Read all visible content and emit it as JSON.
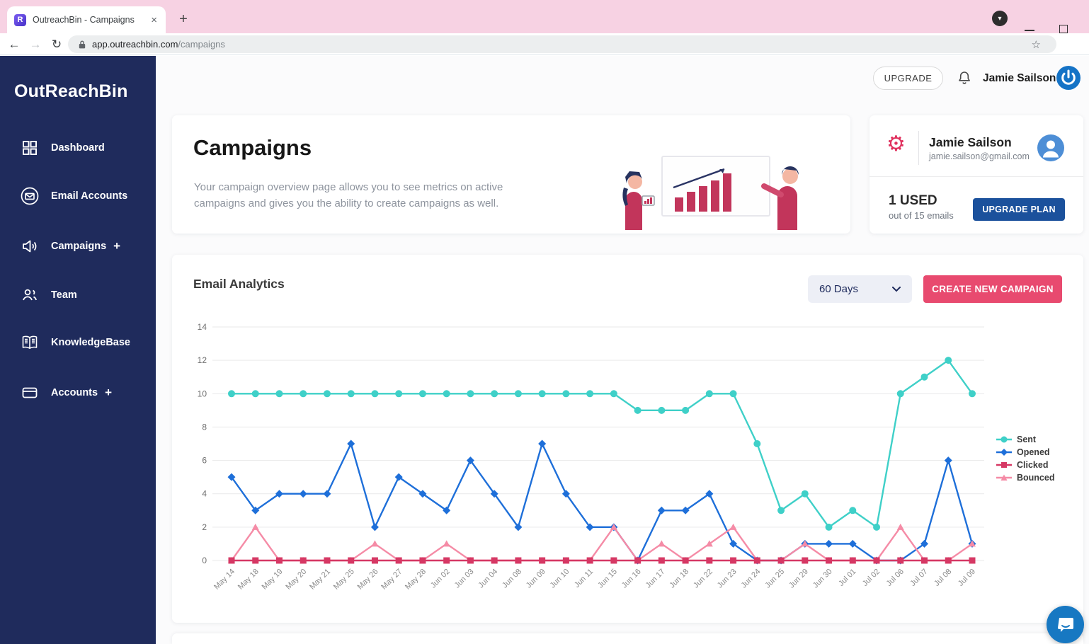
{
  "browser": {
    "tab_title": "OutreachBin - Campaigns",
    "url_domain": "app.outreachbin.com",
    "url_path": "/campaigns"
  },
  "icons": {
    "favicon_letter": "R",
    "close_glyph": "×",
    "plus_glyph": "+",
    "chevron_down_glyph": "▾",
    "back_glyph": "←",
    "forward_glyph": "→",
    "reload_glyph": "↻",
    "star_glyph": "☆",
    "gear_glyph": "⚙"
  },
  "sidebar": {
    "logo": "OutReachBin",
    "items": [
      {
        "label": "Dashboard",
        "icon": "grid-icon"
      },
      {
        "label": "Email Accounts",
        "icon": "envelope-icon"
      },
      {
        "label": "Campaigns",
        "icon": "megaphone-icon",
        "plus": "+"
      },
      {
        "label": "Team",
        "icon": "team-icon"
      },
      {
        "label": "KnowledgeBase",
        "icon": "book-icon"
      },
      {
        "label": "Accounts",
        "icon": "wallet-icon",
        "plus": "+"
      }
    ]
  },
  "topbar": {
    "upgrade_label": "UPGRADE",
    "user_name": "Jamie Sailson"
  },
  "header_card": {
    "title": "Campaigns",
    "description_line1": "Your campaign overview page allows you to see metrics on active",
    "description_line2": "campaigns and gives you the ability to create campaigns as well."
  },
  "profile_card": {
    "name": "Jamie Sailson",
    "email": "jamie.sailson@gmail.com",
    "used_count": "1 USED",
    "used_detail": "out of 15 emails",
    "upgrade_button": "UPGRADE PLAN"
  },
  "analytics": {
    "title": "Email Analytics",
    "range_selector": "60 Days",
    "create_button": "CREATE NEW CAMPAIGN"
  },
  "colors": {
    "sidebar_navy": "#1f2b5c",
    "tabstrip_pink": "#f7d2e3",
    "accent_pink": "#e84a6f",
    "plan_button_blue": "#1b519c",
    "sent_teal": "#3fd0c8",
    "opened_blue": "#1e6fd9",
    "clicked_crimson": "#d63864",
    "bounced_pink": "#f58ba6"
  },
  "chart_data": {
    "type": "line",
    "title": "Email Analytics",
    "xlabel": "",
    "ylabel": "",
    "ylim": [
      0,
      14
    ],
    "yticks": [
      0,
      2,
      4,
      6,
      8,
      10,
      12,
      14
    ],
    "grid": true,
    "legend_position": "right",
    "categories": [
      "May 14",
      "May 18",
      "May 19",
      "May 20",
      "May 21",
      "May 25",
      "May 26",
      "May 27",
      "May 28",
      "Jun 02",
      "Jun 03",
      "Jun 04",
      "Jun 08",
      "Jun 09",
      "Jun 10",
      "Jun 11",
      "Jun 15",
      "Jun 16",
      "Jun 17",
      "Jun 18",
      "Jun 22",
      "Jun 23",
      "Jun 24",
      "Jun 25",
      "Jun 29",
      "Jun 30",
      "Jul 01",
      "Jul 02",
      "Jul 06",
      "Jul 07",
      "Jul 08",
      "Jul 09"
    ],
    "series": [
      {
        "name": "Sent",
        "color": "#3fd0c8",
        "marker": "circle",
        "values": [
          10,
          10,
          10,
          10,
          10,
          10,
          10,
          10,
          10,
          10,
          10,
          10,
          10,
          10,
          10,
          10,
          10,
          9,
          9,
          9,
          10,
          10,
          7,
          3,
          4,
          2,
          3,
          2,
          10,
          11,
          12,
          10
        ]
      },
      {
        "name": "Opened",
        "color": "#1e6fd9",
        "marker": "diamond",
        "values": [
          5,
          3,
          4,
          4,
          4,
          7,
          2,
          5,
          4,
          3,
          6,
          4,
          2,
          7,
          4,
          2,
          2,
          0,
          3,
          3,
          4,
          1,
          0,
          0,
          1,
          1,
          1,
          0,
          0,
          1,
          6,
          1
        ]
      },
      {
        "name": "Clicked",
        "color": "#d63864",
        "marker": "square",
        "values": [
          0,
          0,
          0,
          0,
          0,
          0,
          0,
          0,
          0,
          0,
          0,
          0,
          0,
          0,
          0,
          0,
          0,
          0,
          0,
          0,
          0,
          0,
          0,
          0,
          0,
          0,
          0,
          0,
          0,
          0,
          0,
          0
        ]
      },
      {
        "name": "Bounced",
        "color": "#f58ba6",
        "marker": "triangle",
        "values": [
          0,
          2,
          0,
          0,
          0,
          0,
          1,
          0,
          0,
          1,
          0,
          0,
          0,
          0,
          0,
          0,
          2,
          0,
          1,
          0,
          1,
          2,
          0,
          0,
          1,
          0,
          0,
          0,
          2,
          0,
          0,
          1
        ]
      }
    ]
  }
}
